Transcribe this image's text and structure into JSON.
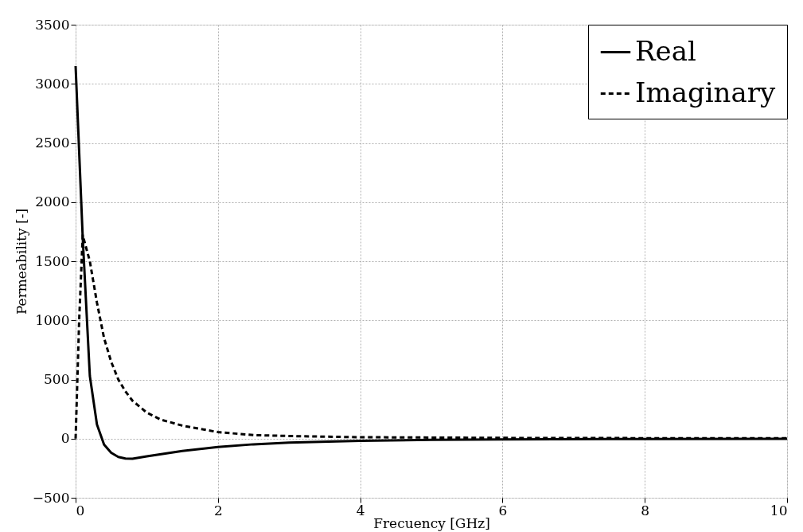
{
  "chart_data": {
    "type": "line",
    "xlabel": "Frecuency [GHz]",
    "ylabel": "Permeability [-]",
    "xlim": [
      0,
      10
    ],
    "ylim": [
      -500,
      3500
    ],
    "xticks": [
      0,
      2,
      4,
      6,
      8,
      10
    ],
    "yticks": [
      -500,
      0,
      500,
      1000,
      1500,
      2000,
      2500,
      3000,
      3500
    ],
    "grid": true,
    "legend": "top right",
    "marker": "none",
    "series": [
      {
        "name": "Real",
        "color": "#000000",
        "line_style": "solid",
        "x": [
          0,
          0.1,
          0.2,
          0.3,
          0.4,
          0.5,
          0.6,
          0.7,
          0.8,
          1.0,
          1.5,
          2,
          2.5,
          3,
          4,
          5,
          6,
          8,
          10
        ],
        "values": [
          3150,
          1700,
          530,
          120,
          -50,
          -120,
          -155,
          -168,
          -170,
          -150,
          -105,
          -70,
          -48,
          -33,
          -18,
          -10,
          -7,
          -3,
          -2
        ]
      },
      {
        "name": "Imaginary",
        "color": "#000000",
        "line_style": "dashed",
        "x": [
          0,
          0.05,
          0.1,
          0.2,
          0.3,
          0.4,
          0.5,
          0.6,
          0.7,
          0.8,
          1.0,
          1.2,
          1.5,
          2,
          2.5,
          3,
          4,
          6,
          8,
          10
        ],
        "values": [
          0,
          1000,
          1720,
          1500,
          1150,
          850,
          650,
          500,
          400,
          320,
          220,
          160,
          110,
          55,
          30,
          22,
          12,
          6,
          4,
          3
        ]
      }
    ]
  }
}
